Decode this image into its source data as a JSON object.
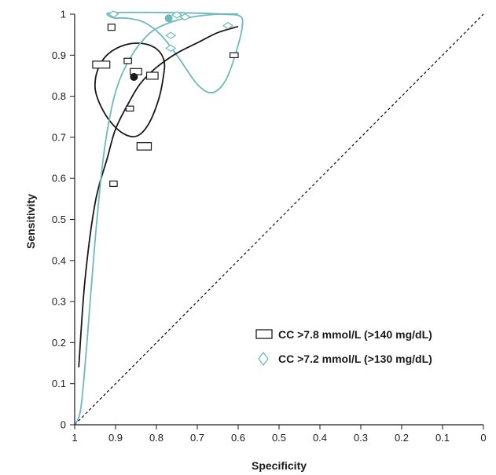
{
  "chart_data": {
    "type": "scatter",
    "title": "",
    "xlabel": "Specificity",
    "ylabel": "Sensitivity",
    "xlim": [
      1,
      0
    ],
    "ylim": [
      0,
      1
    ],
    "x_reversed": true,
    "grid": false,
    "legend_position": "bottom-right",
    "x_ticks": [
      "1",
      "0.9",
      "0.8",
      "0.7",
      "0.6",
      "0.5",
      "0.4",
      "0.3",
      "0.2",
      "0.1",
      "0"
    ],
    "y_ticks": [
      "0",
      "0.1",
      "0.2",
      "0.3",
      "0.4",
      "0.5",
      "0.6",
      "0.7",
      "0.8",
      "0.9",
      "1"
    ],
    "colors": {
      "series1": "#1a1a1a",
      "series2": "#6fb8be",
      "diagonal": "#1a1a1a"
    },
    "series": [
      {
        "name": "CC >7.8 mmol/L (>140 mg/dL)",
        "marker": "rectangle",
        "color": "#1a1a1a",
        "points": [
          {
            "x": 0.91,
            "y": 0.968,
            "w": 0.017,
            "h": 0.015
          },
          {
            "x": 0.935,
            "y": 0.877,
            "w": 0.042,
            "h": 0.017
          },
          {
            "x": 0.87,
            "y": 0.886,
            "w": 0.018,
            "h": 0.013
          },
          {
            "x": 0.85,
            "y": 0.86,
            "w": 0.028,
            "h": 0.015
          },
          {
            "x": 0.81,
            "y": 0.85,
            "w": 0.028,
            "h": 0.017
          },
          {
            "x": 0.865,
            "y": 0.77,
            "w": 0.018,
            "h": 0.012
          },
          {
            "x": 0.83,
            "y": 0.678,
            "w": 0.035,
            "h": 0.018
          },
          {
            "x": 0.905,
            "y": 0.587,
            "w": 0.018,
            "h": 0.013
          },
          {
            "x": 0.61,
            "y": 0.9,
            "w": 0.02,
            "h": 0.012
          }
        ],
        "summary_point": {
          "x": 0.855,
          "y": 0.847
        },
        "sroc_curve": [
          [
            0.99,
            0.14
          ],
          [
            0.975,
            0.35
          ],
          [
            0.95,
            0.54
          ],
          [
            0.92,
            0.65
          ],
          [
            0.9,
            0.72
          ],
          [
            0.87,
            0.78
          ],
          [
            0.84,
            0.83
          ],
          [
            0.8,
            0.87
          ],
          [
            0.75,
            0.905
          ],
          [
            0.7,
            0.93
          ],
          [
            0.65,
            0.955
          ],
          [
            0.6,
            0.97
          ]
        ],
        "confidence_region": [
          [
            0.95,
            0.82
          ],
          [
            0.943,
            0.866
          ],
          [
            0.918,
            0.903
          ],
          [
            0.877,
            0.925
          ],
          [
            0.831,
            0.928
          ],
          [
            0.797,
            0.913
          ],
          [
            0.781,
            0.885
          ],
          [
            0.783,
            0.848
          ],
          [
            0.795,
            0.791
          ],
          [
            0.82,
            0.731
          ],
          [
            0.848,
            0.703
          ],
          [
            0.879,
            0.708
          ],
          [
            0.911,
            0.736
          ],
          [
            0.937,
            0.778
          ]
        ]
      },
      {
        "name": "CC >7.2 mmol/L (>130 mg/dL)",
        "marker": "diamond",
        "color": "#6fb8be",
        "points": [
          {
            "x": 0.905,
            "y": 1.0
          },
          {
            "x": 0.75,
            "y": 0.998
          },
          {
            "x": 0.73,
            "y": 0.993
          },
          {
            "x": 0.765,
            "y": 0.948
          },
          {
            "x": 0.765,
            "y": 0.917
          },
          {
            "x": 0.625,
            "y": 0.972
          }
        ],
        "summary_point": {
          "x": 0.77,
          "y": 0.99
        },
        "sroc_curve": [
          [
            1.0,
            0.0
          ],
          [
            0.985,
            0.04
          ],
          [
            0.97,
            0.2
          ],
          [
            0.95,
            0.45
          ],
          [
            0.93,
            0.65
          ],
          [
            0.91,
            0.77
          ],
          [
            0.89,
            0.84
          ],
          [
            0.86,
            0.9
          ],
          [
            0.83,
            0.94
          ],
          [
            0.8,
            0.965
          ],
          [
            0.75,
            0.985
          ],
          [
            0.7,
            0.995
          ],
          [
            0.65,
            1.0
          ],
          [
            0.6,
            1.0
          ]
        ],
        "confidence_region": [
          [
            0.905,
            0.991
          ],
          [
            0.92,
            1.002
          ],
          [
            0.88,
            1.004
          ],
          [
            0.8,
            1.004
          ],
          [
            0.72,
            1.003
          ],
          [
            0.64,
            1.0
          ],
          [
            0.595,
            0.995
          ],
          [
            0.59,
            0.97
          ],
          [
            0.6,
            0.925
          ],
          [
            0.625,
            0.85
          ],
          [
            0.65,
            0.815
          ],
          [
            0.675,
            0.81
          ],
          [
            0.705,
            0.835
          ],
          [
            0.75,
            0.9
          ],
          [
            0.79,
            0.95
          ],
          [
            0.83,
            0.98
          ],
          [
            0.87,
            0.99
          ]
        ]
      }
    ],
    "reference_line": {
      "from": [
        1,
        0
      ],
      "to": [
        0,
        1
      ],
      "style": "dashed"
    }
  }
}
